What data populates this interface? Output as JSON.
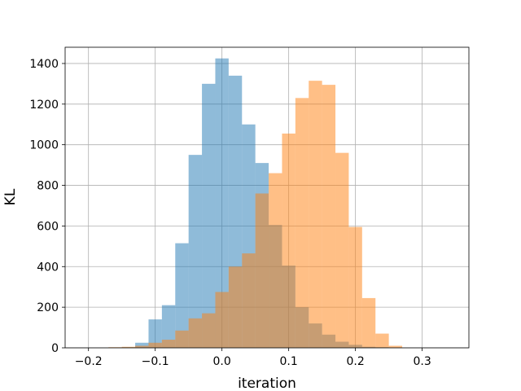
{
  "chart_data": {
    "type": "bar",
    "subtype": "histogram",
    "title": "",
    "xlabel": "iteration",
    "ylabel": "KL",
    "xlim": [
      -0.235,
      0.37
    ],
    "ylim": [
      0,
      1480
    ],
    "xticks": [
      -0.2,
      -0.1,
      0.0,
      0.1,
      0.2,
      0.3
    ],
    "xtick_labels": [
      "−0.2",
      "−0.1",
      "0.0",
      "0.1",
      "0.2",
      "0.3"
    ],
    "yticks": [
      0,
      200,
      400,
      600,
      800,
      1000,
      1200,
      1400
    ],
    "ytick_labels": [
      "0",
      "200",
      "400",
      "600",
      "800",
      "1000",
      "1200",
      "1400"
    ],
    "grid": true,
    "legend": "none",
    "colors": [
      "#1f77b4",
      "#ff7f0e"
    ],
    "alpha": 0.5,
    "series": [
      {
        "bins": [
          {
            "x0": -0.17,
            "x1": -0.15,
            "y": 2
          },
          {
            "x0": -0.15,
            "x1": -0.13,
            "y": 3
          },
          {
            "x0": -0.13,
            "x1": -0.11,
            "y": 25
          },
          {
            "x0": -0.11,
            "x1": -0.09,
            "y": 140
          },
          {
            "x0": -0.09,
            "x1": -0.07,
            "y": 210
          },
          {
            "x0": -0.07,
            "x1": -0.05,
            "y": 515
          },
          {
            "x0": -0.05,
            "x1": -0.03,
            "y": 950
          },
          {
            "x0": -0.03,
            "x1": -0.01,
            "y": 1300
          },
          {
            "x0": -0.01,
            "x1": 0.01,
            "y": 1425
          },
          {
            "x0": 0.01,
            "x1": 0.03,
            "y": 1340
          },
          {
            "x0": 0.03,
            "x1": 0.05,
            "y": 1100
          },
          {
            "x0": 0.05,
            "x1": 0.07,
            "y": 910
          },
          {
            "x0": 0.07,
            "x1": 0.09,
            "y": 605
          },
          {
            "x0": 0.09,
            "x1": 0.11,
            "y": 405
          },
          {
            "x0": 0.11,
            "x1": 0.13,
            "y": 200
          },
          {
            "x0": 0.13,
            "x1": 0.15,
            "y": 120
          },
          {
            "x0": 0.15,
            "x1": 0.17,
            "y": 65
          },
          {
            "x0": 0.17,
            "x1": 0.19,
            "y": 30
          },
          {
            "x0": 0.19,
            "x1": 0.21,
            "y": 15
          },
          {
            "x0": 0.21,
            "x1": 0.23,
            "y": 5
          },
          {
            "x0": 0.23,
            "x1": 0.25,
            "y": 3
          },
          {
            "x0": 0.25,
            "x1": 0.27,
            "y": 1
          }
        ]
      },
      {
        "bins": [
          {
            "x0": -0.17,
            "x1": -0.15,
            "y": 3
          },
          {
            "x0": -0.15,
            "x1": -0.13,
            "y": 5
          },
          {
            "x0": -0.13,
            "x1": -0.11,
            "y": 10
          },
          {
            "x0": -0.11,
            "x1": -0.09,
            "y": 25
          },
          {
            "x0": -0.09,
            "x1": -0.07,
            "y": 40
          },
          {
            "x0": -0.07,
            "x1": -0.05,
            "y": 85
          },
          {
            "x0": -0.05,
            "x1": -0.03,
            "y": 145
          },
          {
            "x0": -0.03,
            "x1": -0.01,
            "y": 170
          },
          {
            "x0": -0.01,
            "x1": 0.01,
            "y": 275
          },
          {
            "x0": 0.01,
            "x1": 0.03,
            "y": 400
          },
          {
            "x0": 0.03,
            "x1": 0.05,
            "y": 465
          },
          {
            "x0": 0.05,
            "x1": 0.07,
            "y": 760
          },
          {
            "x0": 0.07,
            "x1": 0.09,
            "y": 860
          },
          {
            "x0": 0.09,
            "x1": 0.11,
            "y": 1055
          },
          {
            "x0": 0.11,
            "x1": 0.13,
            "y": 1230
          },
          {
            "x0": 0.13,
            "x1": 0.15,
            "y": 1315
          },
          {
            "x0": 0.15,
            "x1": 0.17,
            "y": 1295
          },
          {
            "x0": 0.17,
            "x1": 0.19,
            "y": 960
          },
          {
            "x0": 0.19,
            "x1": 0.21,
            "y": 595
          },
          {
            "x0": 0.21,
            "x1": 0.23,
            "y": 245
          },
          {
            "x0": 0.23,
            "x1": 0.25,
            "y": 70
          },
          {
            "x0": 0.25,
            "x1": 0.27,
            "y": 10
          }
        ]
      }
    ]
  }
}
